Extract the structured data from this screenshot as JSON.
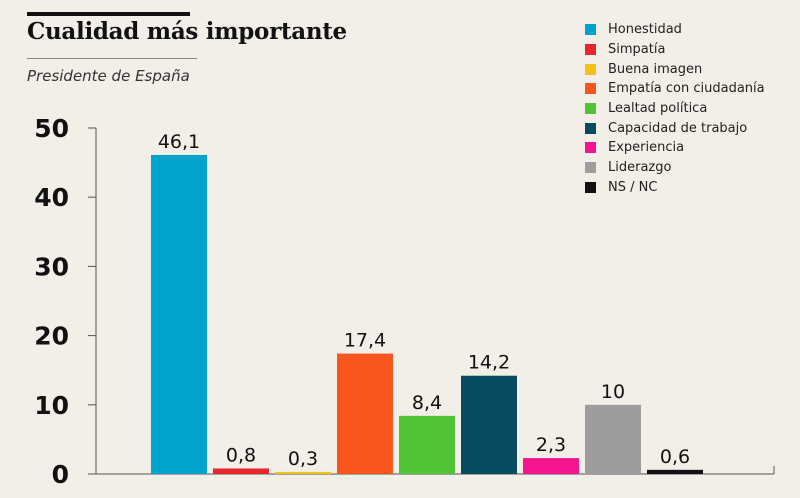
{
  "header": {
    "title": "Cualidad más importante",
    "subtitle": "Presidente de España"
  },
  "chart_data": {
    "type": "bar",
    "title": "Cualidad más importante",
    "subtitle": "Presidente de España",
    "xlabel": "",
    "ylabel": "",
    "ylim": [
      0,
      50
    ],
    "yticks": [
      "0",
      "10",
      "20",
      "30",
      "40",
      "50"
    ],
    "grid": false,
    "legend_position": "top-right",
    "categories": [
      "Honestidad",
      "Simpatía",
      "Buena imagen",
      "Empatía con ciudadanía",
      "Lealtad política",
      "Capacidad de trabajo",
      "Experiencia",
      "Liderazgo",
      "NS / NC"
    ],
    "values": [
      46.1,
      0.8,
      0.3,
      17.4,
      8.4,
      14.2,
      2.3,
      10,
      0.6
    ],
    "value_labels": [
      "46,1",
      "0,8",
      "0,3",
      "17,4",
      "8,4",
      "14,2",
      "2,3",
      "10",
      "0,6"
    ],
    "colors": [
      "#00a3cc",
      "#e8262d",
      "#f2c21b",
      "#f8561c",
      "#52c236",
      "#064b5e",
      "#f2158f",
      "#9d9d9d",
      "#111111"
    ]
  }
}
